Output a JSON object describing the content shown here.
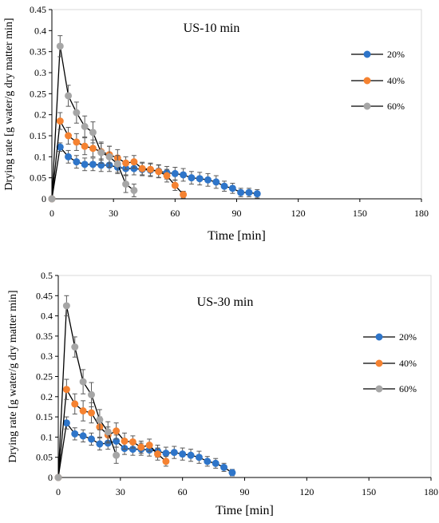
{
  "chart_data": [
    {
      "type": "line",
      "title": "US-10 min",
      "xlabel": "Time [min]",
      "ylabel": "Drying rate [g water/g dry matter min]",
      "xlim": [
        0,
        180
      ],
      "ylim": [
        0,
        0.45
      ],
      "xticks": [
        "0",
        "30",
        "60",
        "90",
        "120",
        "150",
        "180"
      ],
      "yticks": [
        "0",
        "0.05",
        "0.1",
        "0.15",
        "0.2",
        "0.25",
        "0.3",
        "0.35",
        "0.4",
        "0.45"
      ],
      "legend": "right",
      "series": [
        {
          "name": "20%",
          "color": "#2e75c9",
          "x": [
            0,
            4,
            8,
            12,
            16,
            20,
            24,
            28,
            32,
            36,
            40,
            44,
            48,
            52,
            56,
            60,
            64,
            68,
            72,
            76,
            80,
            84,
            88,
            92,
            96,
            100
          ],
          "y": [
            0,
            0.123,
            0.1,
            0.088,
            0.082,
            0.082,
            0.08,
            0.08,
            0.075,
            0.072,
            0.072,
            0.07,
            0.068,
            0.066,
            0.062,
            0.06,
            0.057,
            0.05,
            0.048,
            0.045,
            0.04,
            0.03,
            0.025,
            0.015,
            0.015,
            0.012
          ],
          "err": [
            0,
            0.01,
            0.015,
            0.015,
            0.015,
            0.015,
            0.015,
            0.015,
            0.015,
            0.015,
            0.015,
            0.015,
            0.015,
            0.015,
            0.015,
            0.015,
            0.015,
            0.015,
            0.015,
            0.015,
            0.015,
            0.012,
            0.012,
            0.01,
            0.01,
            0.01
          ]
        },
        {
          "name": "40%",
          "color": "#f58231",
          "x": [
            0,
            4,
            8,
            12,
            16,
            20,
            24,
            28,
            32,
            36,
            40,
            44,
            48,
            52,
            56,
            60,
            64
          ],
          "y": [
            0,
            0.185,
            0.15,
            0.135,
            0.125,
            0.12,
            0.112,
            0.105,
            0.097,
            0.085,
            0.088,
            0.072,
            0.07,
            0.065,
            0.055,
            0.032,
            0.01
          ],
          "err": [
            0,
            0.02,
            0.02,
            0.02,
            0.02,
            0.02,
            0.02,
            0.02,
            0.02,
            0.015,
            0.015,
            0.015,
            0.015,
            0.015,
            0.015,
            0.012,
            0.008
          ]
        },
        {
          "name": "60%",
          "color": "#a6a6a6",
          "x": [
            0,
            4,
            8,
            12,
            16,
            20,
            24,
            28,
            32,
            36,
            40
          ],
          "y": [
            0,
            0.363,
            0.245,
            0.205,
            0.172,
            0.158,
            0.11,
            0.1,
            0.083,
            0.035,
            0.02
          ],
          "err": [
            0,
            0.025,
            0.025,
            0.025,
            0.025,
            0.025,
            0.025,
            0.025,
            0.02,
            0.02,
            0.015
          ]
        }
      ]
    },
    {
      "type": "line",
      "title": "US-30 min",
      "xlabel": "Time [min]",
      "ylabel": "Drying rate [g water/g dry matter min]",
      "xlim": [
        0,
        180
      ],
      "ylim": [
        0,
        0.5
      ],
      "xticks": [
        "0",
        "30",
        "60",
        "90",
        "120",
        "150",
        "180"
      ],
      "yticks": [
        "0",
        "0.05",
        "0.1",
        "0.15",
        "0.2",
        "0.25",
        "0.3",
        "0.35",
        "0.4",
        "0.45",
        "0.5"
      ],
      "legend": "right",
      "series": [
        {
          "name": "20%",
          "color": "#2e75c9",
          "x": [
            0,
            4,
            8,
            12,
            16,
            20,
            24,
            28,
            32,
            36,
            40,
            44,
            48,
            52,
            56,
            60,
            64,
            68,
            72,
            76,
            80,
            84
          ],
          "y": [
            0,
            0.135,
            0.108,
            0.103,
            0.095,
            0.083,
            0.085,
            0.09,
            0.072,
            0.07,
            0.07,
            0.068,
            0.065,
            0.06,
            0.062,
            0.058,
            0.055,
            0.05,
            0.04,
            0.035,
            0.025,
            0.012
          ],
          "err": [
            0,
            0.015,
            0.015,
            0.015,
            0.015,
            0.015,
            0.015,
            0.015,
            0.015,
            0.015,
            0.015,
            0.015,
            0.015,
            0.015,
            0.015,
            0.015,
            0.015,
            0.015,
            0.012,
            0.012,
            0.01,
            0.008
          ]
        },
        {
          "name": "40%",
          "color": "#f58231",
          "x": [
            0,
            4,
            8,
            12,
            16,
            20,
            24,
            28,
            32,
            36,
            40,
            44,
            48,
            52
          ],
          "y": [
            0,
            0.218,
            0.182,
            0.165,
            0.16,
            0.125,
            0.105,
            0.115,
            0.09,
            0.088,
            0.075,
            0.08,
            0.058,
            0.04
          ],
          "err": [
            0,
            0.025,
            0.025,
            0.025,
            0.025,
            0.025,
            0.02,
            0.02,
            0.02,
            0.015,
            0.015,
            0.015,
            0.015,
            0.012
          ]
        },
        {
          "name": "60%",
          "color": "#a6a6a6",
          "x": [
            0,
            4,
            8,
            12,
            16,
            20,
            24,
            28
          ],
          "y": [
            0,
            0.425,
            0.323,
            0.237,
            0.205,
            0.143,
            0.113,
            0.055
          ],
          "err": [
            0,
            0.025,
            0.025,
            0.03,
            0.03,
            0.025,
            0.025,
            0.02
          ]
        }
      ]
    }
  ]
}
